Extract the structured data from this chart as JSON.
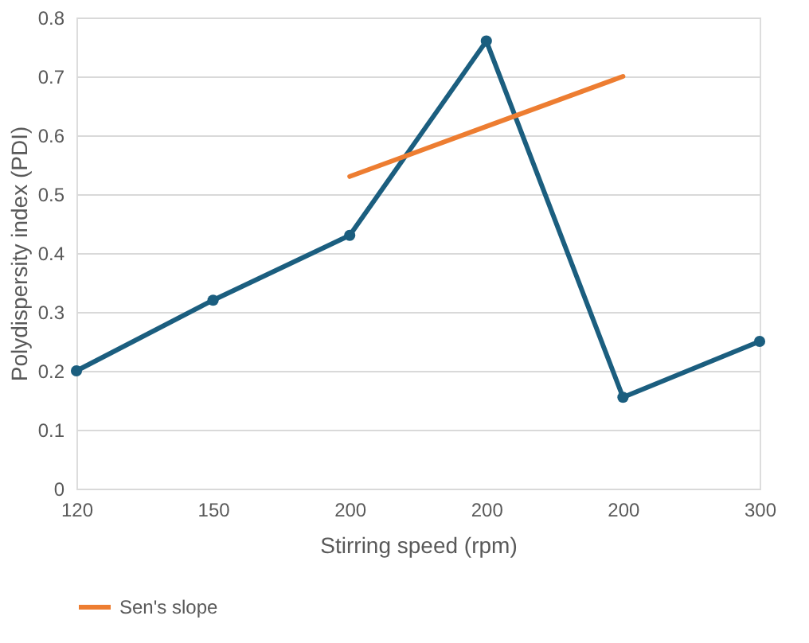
{
  "chart_data": {
    "type": "line",
    "xlabel": "Stirring speed (rpm)",
    "ylabel": "Polydispersity index (PDI)",
    "categories": [
      "120",
      "150",
      "200",
      "200",
      "200",
      "300"
    ],
    "series": [
      {
        "color": "#1b5e7f",
        "marker": "circle",
        "values": [
          0.2,
          0.32,
          0.43,
          0.76,
          0.155,
          0.25
        ]
      },
      {
        "name": "Sen's slope",
        "color": "#ed7d31",
        "marker": "none",
        "values": [
          null,
          null,
          0.53,
          0.615,
          0.7,
          null
        ]
      }
    ],
    "ylim": [
      0,
      0.8
    ],
    "yticks": [
      0,
      0.1,
      0.2,
      0.3,
      0.4,
      0.5,
      0.6,
      0.7,
      0.8
    ],
    "grid": "y",
    "legend": "bottom",
    "line_style": "solid"
  }
}
